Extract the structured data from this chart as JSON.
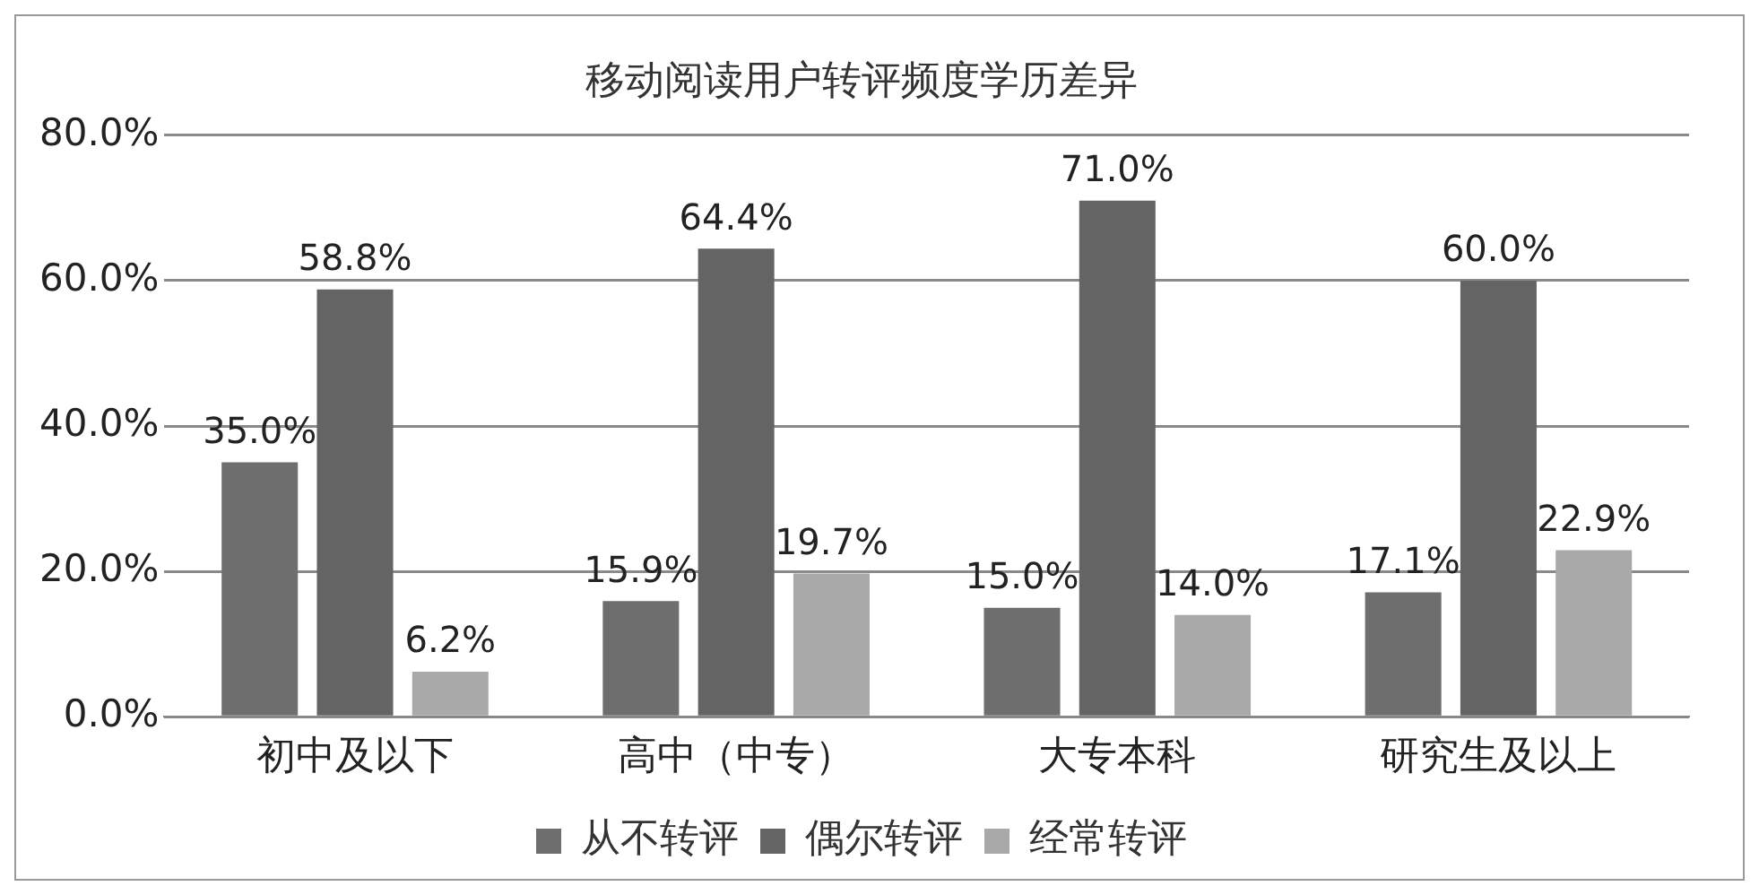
{
  "chart_data": {
    "type": "bar",
    "title": "移动阅读用户转评频度学历差异",
    "categories": [
      "初中及以下",
      "高中（中专）",
      "大专本科",
      "研究生及以上"
    ],
    "series": [
      {
        "name": "从不转评",
        "color": "#6e6e6e",
        "values": [
          35.0,
          15.9,
          15.0,
          17.1
        ],
        "value_labels": [
          "35.0%",
          "15.9%",
          "15.0%",
          "17.1%"
        ]
      },
      {
        "name": "偶尔转评",
        "color": "#646464",
        "values": [
          58.8,
          64.4,
          71.0,
          60.0
        ],
        "value_labels": [
          "58.8%",
          "64.4%",
          "71.0%",
          "60.0%"
        ]
      },
      {
        "name": "经常转评",
        "color": "#a9a9a9",
        "values": [
          6.2,
          19.7,
          14.0,
          22.9
        ],
        "value_labels": [
          "6.2%",
          "19.7%",
          "14.0%",
          "22.9%"
        ]
      }
    ],
    "ylim": [
      0,
      80
    ],
    "yticks": [
      {
        "value": 0,
        "label": "0.0%"
      },
      {
        "value": 20,
        "label": "20.0%"
      },
      {
        "value": 40,
        "label": "40.0%"
      },
      {
        "value": 60,
        "label": "60.0%"
      },
      {
        "value": 80,
        "label": "80.0%"
      }
    ],
    "grid": "y",
    "legend": "bottom"
  }
}
